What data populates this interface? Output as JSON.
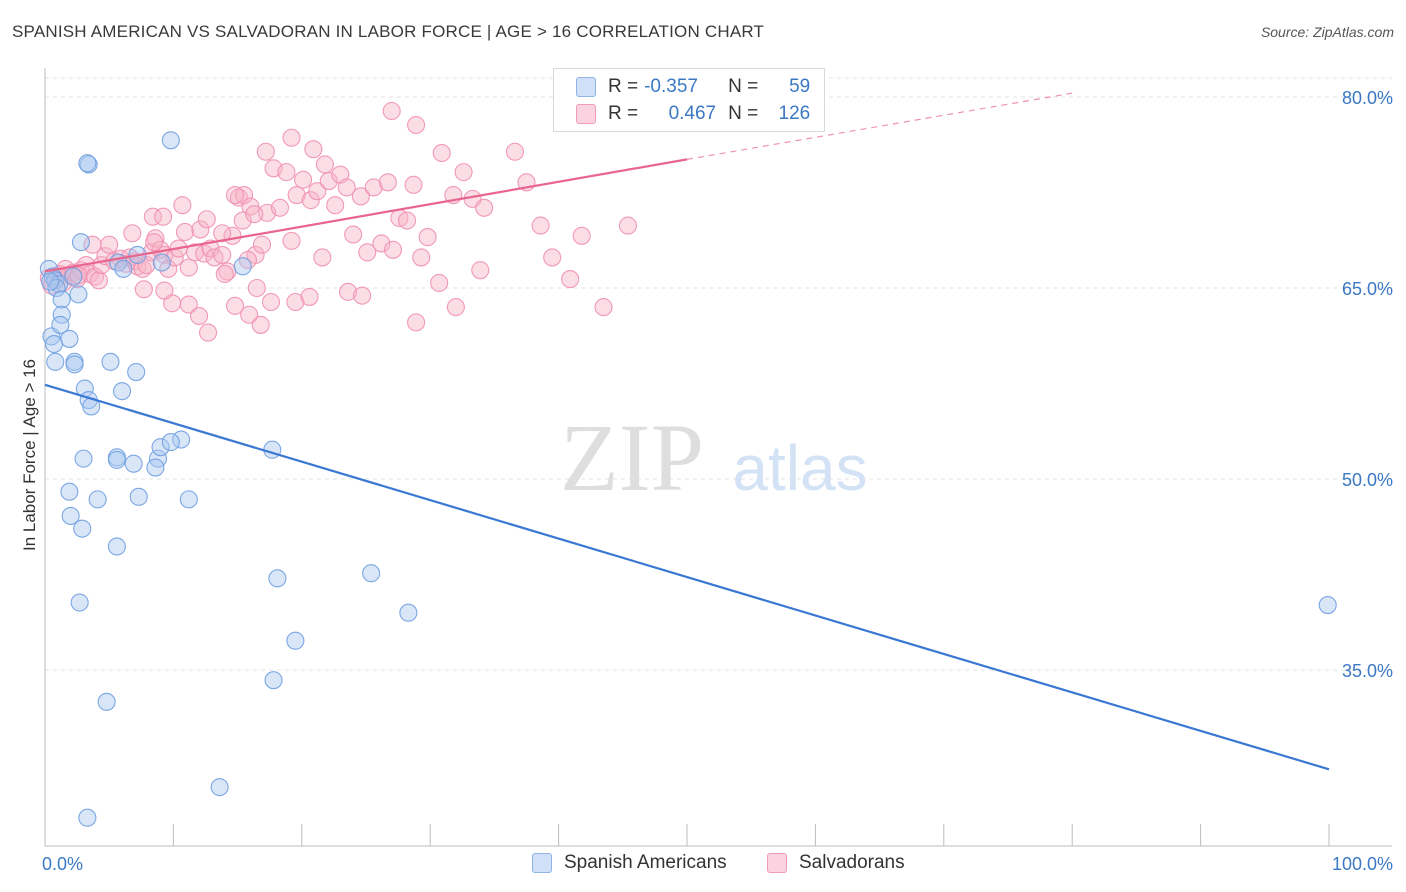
{
  "header": {
    "title": "SPANISH AMERICAN VS SALVADORAN IN LABOR FORCE | AGE > 16 CORRELATION CHART",
    "source": "Source: ZipAtlas.com"
  },
  "watermark": {
    "zip": "ZIP",
    "atlas": "atlas"
  },
  "legend": {
    "rows": [
      {
        "r_label": "R =",
        "r_value": "-0.357",
        "n_label": "N =",
        "n_value": "59",
        "color": "#a9c8f0"
      },
      {
        "r_label": "R =",
        "r_value": "0.467",
        "n_label": "N =",
        "n_value": "126",
        "color": "#f6b3c8"
      }
    ]
  },
  "chart_data": {
    "type": "scatter",
    "ylabel": "In Labor Force | Age > 16",
    "xlim": [
      0,
      100
    ],
    "ylim": [
      20,
      82
    ],
    "x_tick_labels": [
      "0.0%",
      "100.0%"
    ],
    "y_ticks": [
      35,
      50,
      65,
      80
    ],
    "y_tick_labels": [
      "35.0%",
      "50.0%",
      "65.0%",
      "80.0%"
    ],
    "grid": true,
    "colors": {
      "blue": "#3b78d4",
      "pink": "#e8658f",
      "blue_fill": "#a9c8f0",
      "pink_fill": "#f6b3c8"
    },
    "series": [
      {
        "name": "Spanish Americans",
        "color": "#3b78d4",
        "points": [
          [
            0.3,
            66.5
          ],
          [
            0.6,
            65.9
          ],
          [
            0.8,
            65.6
          ],
          [
            1.1,
            65.3
          ],
          [
            0.9,
            65.0
          ],
          [
            0.5,
            61.2
          ],
          [
            0.7,
            60.6
          ],
          [
            1.3,
            64.1
          ],
          [
            1.3,
            62.9
          ],
          [
            1.2,
            62.1
          ],
          [
            1.9,
            61.0
          ],
          [
            0.8,
            59.2
          ],
          [
            2.3,
            59.2
          ],
          [
            2.3,
            59.0
          ],
          [
            2.2,
            65.9
          ],
          [
            2.6,
            64.5
          ],
          [
            2.8,
            68.6
          ],
          [
            3.4,
            74.7
          ],
          [
            3.3,
            74.8
          ],
          [
            9.8,
            76.6
          ],
          [
            5.7,
            67.0
          ],
          [
            6.1,
            66.5
          ],
          [
            7.2,
            67.6
          ],
          [
            9.1,
            67.0
          ],
          [
            15.4,
            66.7
          ],
          [
            5.1,
            59.2
          ],
          [
            7.1,
            58.4
          ],
          [
            6.0,
            56.9
          ],
          [
            3.1,
            57.1
          ],
          [
            3.4,
            56.2
          ],
          [
            3.6,
            55.7
          ],
          [
            3.0,
            51.6
          ],
          [
            5.6,
            51.7
          ],
          [
            5.6,
            51.5
          ],
          [
            6.9,
            51.2
          ],
          [
            8.8,
            51.6
          ],
          [
            8.6,
            50.9
          ],
          [
            9.0,
            52.5
          ],
          [
            10.6,
            53.1
          ],
          [
            9.8,
            52.9
          ],
          [
            17.7,
            52.3
          ],
          [
            1.9,
            49.0
          ],
          [
            4.1,
            48.4
          ],
          [
            7.3,
            48.6
          ],
          [
            11.2,
            48.4
          ],
          [
            2.0,
            47.1
          ],
          [
            2.9,
            46.1
          ],
          [
            5.6,
            44.7
          ],
          [
            2.7,
            40.3
          ],
          [
            18.1,
            42.2
          ],
          [
            25.4,
            42.6
          ],
          [
            28.3,
            39.5
          ],
          [
            19.5,
            37.3
          ],
          [
            17.8,
            34.2
          ],
          [
            4.8,
            32.5
          ],
          [
            13.6,
            25.8
          ],
          [
            3.3,
            23.4
          ],
          [
            99.9,
            40.1
          ],
          [
            0.4,
            65.5
          ]
        ],
        "trend": {
          "x": [
            0,
            100
          ],
          "y": [
            57.4,
            27.2
          ]
        }
      },
      {
        "name": "Salvadorans",
        "color": "#e8658f",
        "points": [
          [
            0.3,
            65.8
          ],
          [
            0.5,
            65.2
          ],
          [
            0.8,
            65.7
          ],
          [
            1.0,
            66.0
          ],
          [
            1.2,
            66.1
          ],
          [
            1.4,
            65.4
          ],
          [
            1.6,
            66.5
          ],
          [
            1.9,
            66.0
          ],
          [
            2.2,
            66.2
          ],
          [
            2.5,
            65.7
          ],
          [
            2.8,
            66.4
          ],
          [
            3.2,
            66.8
          ],
          [
            3.5,
            66.1
          ],
          [
            3.9,
            65.9
          ],
          [
            4.2,
            65.6
          ],
          [
            4.4,
            66.8
          ],
          [
            4.7,
            67.5
          ],
          [
            5.0,
            68.4
          ],
          [
            5.4,
            67.1
          ],
          [
            5.9,
            67.3
          ],
          [
            6.3,
            66.9
          ],
          [
            6.6,
            67.4
          ],
          [
            7.0,
            67.1
          ],
          [
            7.2,
            66.7
          ],
          [
            7.6,
            66.5
          ],
          [
            7.9,
            66.8
          ],
          [
            8.3,
            67.8
          ],
          [
            8.6,
            68.9
          ],
          [
            9.0,
            68.0
          ],
          [
            9.3,
            67.6
          ],
          [
            9.6,
            66.5
          ],
          [
            10.1,
            67.4
          ],
          [
            10.4,
            68.1
          ],
          [
            10.9,
            69.4
          ],
          [
            11.2,
            66.6
          ],
          [
            11.7,
            67.8
          ],
          [
            12.1,
            69.6
          ],
          [
            12.4,
            67.7
          ],
          [
            12.9,
            68.1
          ],
          [
            13.2,
            67.4
          ],
          [
            13.8,
            67.6
          ],
          [
            14.2,
            66.3
          ],
          [
            14.6,
            69.1
          ],
          [
            15.1,
            72.1
          ],
          [
            15.5,
            72.3
          ],
          [
            16.0,
            71.4
          ],
          [
            16.4,
            67.6
          ],
          [
            16.9,
            68.4
          ],
          [
            17.3,
            70.9
          ],
          [
            17.8,
            74.4
          ],
          [
            18.3,
            71.3
          ],
          [
            18.8,
            74.1
          ],
          [
            19.2,
            68.7
          ],
          [
            19.6,
            72.3
          ],
          [
            20.1,
            73.5
          ],
          [
            20.7,
            71.9
          ],
          [
            21.2,
            72.6
          ],
          [
            21.6,
            67.4
          ],
          [
            22.1,
            73.4
          ],
          [
            22.6,
            71.5
          ],
          [
            23.0,
            73.9
          ],
          [
            23.5,
            72.9
          ],
          [
            24.0,
            69.2
          ],
          [
            24.6,
            72.2
          ],
          [
            25.1,
            67.8
          ],
          [
            25.6,
            72.9
          ],
          [
            26.2,
            68.5
          ],
          [
            26.7,
            73.3
          ],
          [
            27.1,
            68.0
          ],
          [
            27.6,
            70.5
          ],
          [
            28.2,
            70.3
          ],
          [
            28.7,
            73.1
          ],
          [
            29.3,
            67.4
          ],
          [
            29.8,
            69.0
          ],
          [
            30.9,
            75.6
          ],
          [
            31.8,
            72.3
          ],
          [
            32.6,
            74.1
          ],
          [
            33.3,
            72.0
          ],
          [
            34.2,
            71.3
          ],
          [
            36.6,
            75.7
          ],
          [
            37.5,
            73.3
          ],
          [
            38.6,
            69.9
          ],
          [
            39.5,
            67.4
          ],
          [
            40.9,
            65.7
          ],
          [
            41.8,
            69.1
          ],
          [
            43.5,
            63.5
          ],
          [
            45.4,
            69.9
          ],
          [
            27.0,
            78.9
          ],
          [
            28.9,
            77.8
          ],
          [
            17.2,
            75.7
          ],
          [
            19.2,
            76.8
          ],
          [
            20.9,
            75.9
          ],
          [
            21.8,
            74.7
          ],
          [
            14.8,
            72.3
          ],
          [
            10.7,
            71.5
          ],
          [
            8.4,
            70.6
          ],
          [
            9.2,
            70.6
          ],
          [
            6.8,
            69.3
          ],
          [
            8.5,
            68.6
          ],
          [
            15.4,
            70.3
          ],
          [
            12.6,
            70.4
          ],
          [
            16.3,
            70.8
          ],
          [
            13.8,
            69.3
          ],
          [
            15.8,
            67.2
          ],
          [
            14.0,
            66.1
          ],
          [
            11.2,
            63.7
          ],
          [
            12.0,
            62.8
          ],
          [
            9.9,
            63.8
          ],
          [
            9.3,
            64.8
          ],
          [
            7.7,
            64.9
          ],
          [
            12.7,
            61.5
          ],
          [
            14.8,
            63.6
          ],
          [
            15.9,
            62.9
          ],
          [
            16.5,
            65.0
          ],
          [
            16.8,
            62.1
          ],
          [
            17.6,
            63.9
          ],
          [
            19.5,
            63.9
          ],
          [
            20.6,
            64.3
          ],
          [
            23.6,
            64.7
          ],
          [
            24.7,
            64.4
          ],
          [
            28.9,
            62.3
          ],
          [
            30.7,
            65.4
          ],
          [
            32.0,
            63.5
          ],
          [
            33.9,
            66.4
          ],
          [
            2.6,
            66.0
          ],
          [
            3.7,
            68.4
          ]
        ],
        "trend": {
          "x": [
            0,
            50
          ],
          "y": [
            66.3,
            75.1
          ]
        },
        "trend_extension": {
          "x": [
            50,
            80
          ],
          "y": [
            75.1,
            80.3
          ]
        }
      }
    ]
  },
  "bottom_legend": [
    {
      "label": "Spanish Americans",
      "color": "#a9c8f0"
    },
    {
      "label": "Salvadorans",
      "color": "#f6b3c8"
    }
  ]
}
